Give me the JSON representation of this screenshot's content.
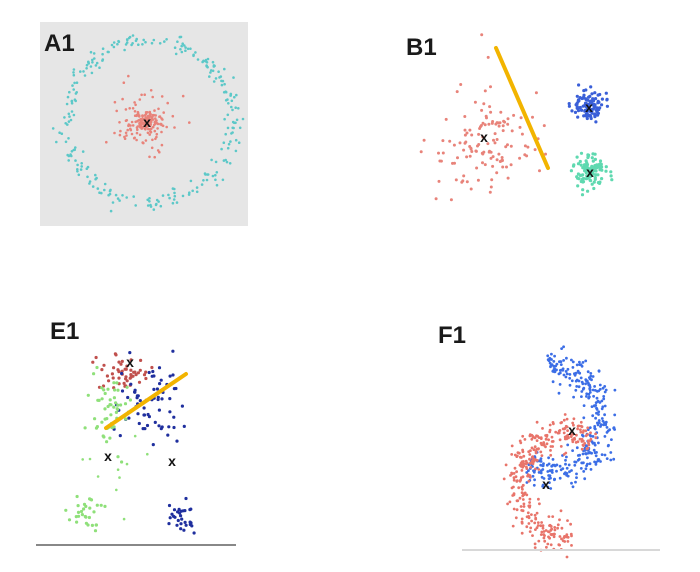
{
  "panels": [
    {
      "id": "a1",
      "label": "A1",
      "description_colors": {
        "inner": "#e8837a",
        "outer": "#5cc8c8",
        "background": "#e6e6e6"
      }
    },
    {
      "id": "b1",
      "label": "B1",
      "description_colors": {
        "left": "#e8837a",
        "blue": "#3a5fd8",
        "green": "#5fd9b0",
        "line": "#f2b400"
      }
    },
    {
      "id": "e1",
      "label": "E1",
      "description_colors": {
        "red": "#c0504d",
        "navy": "#1f2f9e",
        "green": "#8fe07a",
        "line": "#f2b400"
      }
    },
    {
      "id": "f1",
      "label": "F1",
      "description_colors": {
        "upper": "#3c6ee6",
        "lower": "#e8746a"
      }
    }
  ],
  "centroid_marker": "x"
}
